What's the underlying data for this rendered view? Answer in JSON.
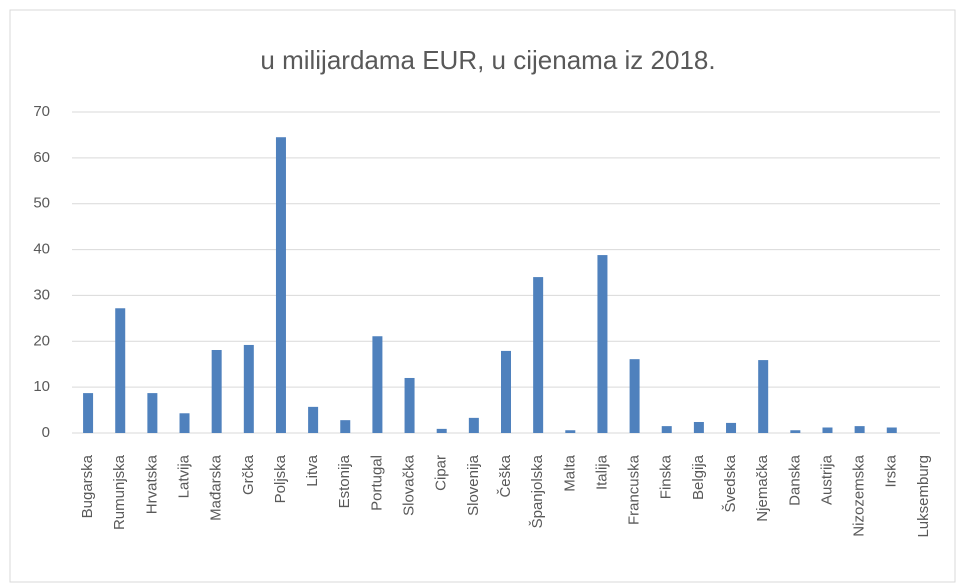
{
  "chart_data": {
    "type": "bar",
    "title": "u milijardama EUR, u cijenama iz 2018.",
    "categories": [
      "Bugarska",
      "Rumunjska",
      "Hrvatska",
      "Latvija",
      "Mađarska",
      "Grčka",
      "Poljska",
      "Litva",
      "Estonija",
      "Portugal",
      "Slovačka",
      "Cipar",
      "Slovenija",
      "Češka",
      "Španjolska",
      "Malta",
      "Italija",
      "Francuska",
      "Finska",
      "Belgija",
      "Švedska",
      "Njemačka",
      "Danska",
      "Austrija",
      "Nizozemska",
      "Irska",
      "Luksemburg"
    ],
    "values": [
      8.7,
      27.2,
      8.7,
      4.3,
      18.1,
      19.2,
      64.5,
      5.7,
      2.8,
      21.1,
      12.0,
      0.9,
      3.3,
      17.9,
      34.0,
      0.6,
      38.8,
      16.1,
      1.5,
      2.4,
      2.2,
      15.9,
      0.6,
      1.2,
      1.5,
      1.2,
      0
    ],
    "color": "#4f81bd",
    "ylim": [
      0,
      70
    ],
    "yticks": [
      0,
      10,
      20,
      30,
      40,
      50,
      60,
      70
    ],
    "grid": true
  }
}
